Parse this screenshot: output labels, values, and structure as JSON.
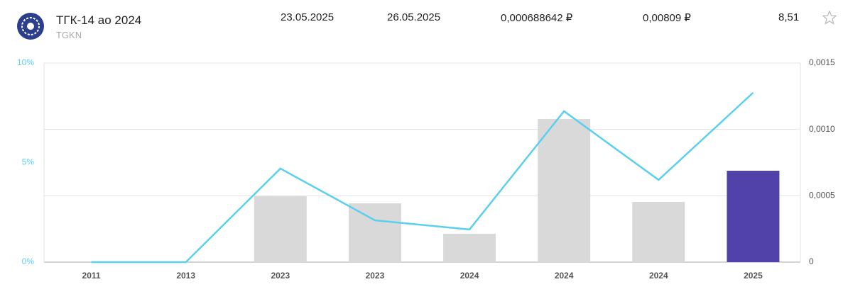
{
  "header": {
    "title": "ТГК-14 ао 2024",
    "ticker": "TGKN",
    "fields": [
      "23.05.2025",
      "26.05.2025",
      "0,000688642 ₽",
      "0,00809 ₽",
      "8,51"
    ]
  },
  "chart_data": {
    "type": "bar-line",
    "categories": [
      "2011",
      "2013",
      "2023",
      "2023",
      "2024",
      "2024",
      "2024",
      "2025"
    ],
    "series": [
      {
        "type": "bar",
        "axis": "y2",
        "colors": [
          "#d9d9d9",
          "#d9d9d9",
          "#d9d9d9",
          "#d9d9d9",
          "#d9d9d9",
          "#d9d9d9",
          "#d9d9d9",
          "#5142aa"
        ],
        "values": [
          0,
          0,
          0.000496,
          0.000443,
          0.000214,
          0.001078,
          0.000454,
          0.000688642
        ]
      },
      {
        "type": "line",
        "axis": "y",
        "color": "#5bcfee",
        "values": [
          0,
          0,
          4.7,
          2.1,
          1.64,
          7.58,
          4.13,
          8.51
        ]
      }
    ],
    "ylim": [
      0,
      10
    ],
    "yticks": [
      {
        "value": 0,
        "label": "0%"
      },
      {
        "value": 5,
        "label": "5%"
      },
      {
        "value": 10,
        "label": "10%"
      }
    ],
    "y2lim": [
      0,
      0.0015
    ],
    "y2ticks": [
      0,
      {
        "value": 0.0005,
        "label": "0,0005"
      },
      {
        "value": 0.001,
        "label": "0,0010"
      },
      {
        "value": 0.0015,
        "label": "0,0015"
      }
    ],
    "grid": true
  }
}
